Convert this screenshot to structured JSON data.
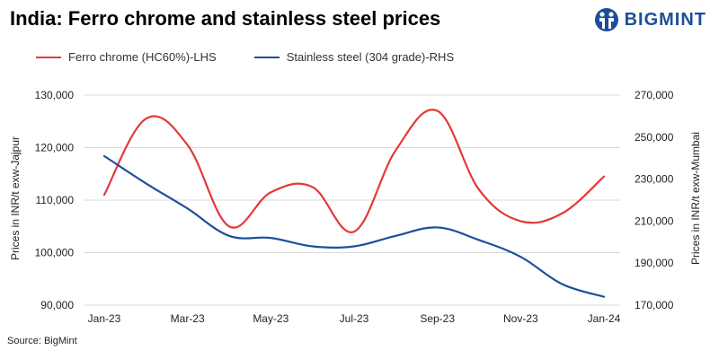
{
  "title": "India: Ferro chrome and stainless steel prices",
  "brand": {
    "name": "BIGMINT",
    "logo_icon": "bigmint-logo-icon",
    "color": "#1b4f9b"
  },
  "source": "Source: BigMint",
  "chart_data": {
    "type": "line",
    "title": "India: Ferro chrome and stainless steel prices",
    "categories": [
      "Jan-23",
      "Feb-23",
      "Mar-23",
      "Apr-23",
      "May-23",
      "Jun-23",
      "Jul-23",
      "Aug-23",
      "Sep-23",
      "Oct-23",
      "Nov-23",
      "Dec-23",
      "Jan-24"
    ],
    "x_tick_labels": [
      "Jan-23",
      "Mar-23",
      "May-23",
      "Jul-23",
      "Sep-23",
      "Nov-23",
      "Jan-24"
    ],
    "ylabel_left": "Prices in INR/t exw-Jajpur",
    "ylabel_right": "Prices in INR/t exw-Mumbai",
    "ylim_left": [
      90000,
      130000
    ],
    "yticks_left": [
      "90,000",
      "100,000",
      "110,000",
      "120,000",
      "130,000"
    ],
    "ylim_right": [
      170000,
      270000
    ],
    "yticks_right": [
      "170,000",
      "190,000",
      "210,000",
      "230,000",
      "250,000",
      "270,000"
    ],
    "legend_position": "top-left",
    "grid": true,
    "series": [
      {
        "name": "Ferro chrome (HC60%)-LHS",
        "axis": "left",
        "color": "#e3393b",
        "values": [
          111000,
          125500,
          120500,
          105000,
          111500,
          112500,
          104000,
          119500,
          127000,
          112000,
          106000,
          107500,
          114500
        ]
      },
      {
        "name": "Stainless steel (304 grade)-RHS",
        "axis": "right",
        "color": "#1d4f9e",
        "values": [
          241000,
          228000,
          216000,
          203000,
          202000,
          198000,
          198000,
          203000,
          207000,
          201000,
          193000,
          180000,
          174000
        ]
      }
    ]
  }
}
